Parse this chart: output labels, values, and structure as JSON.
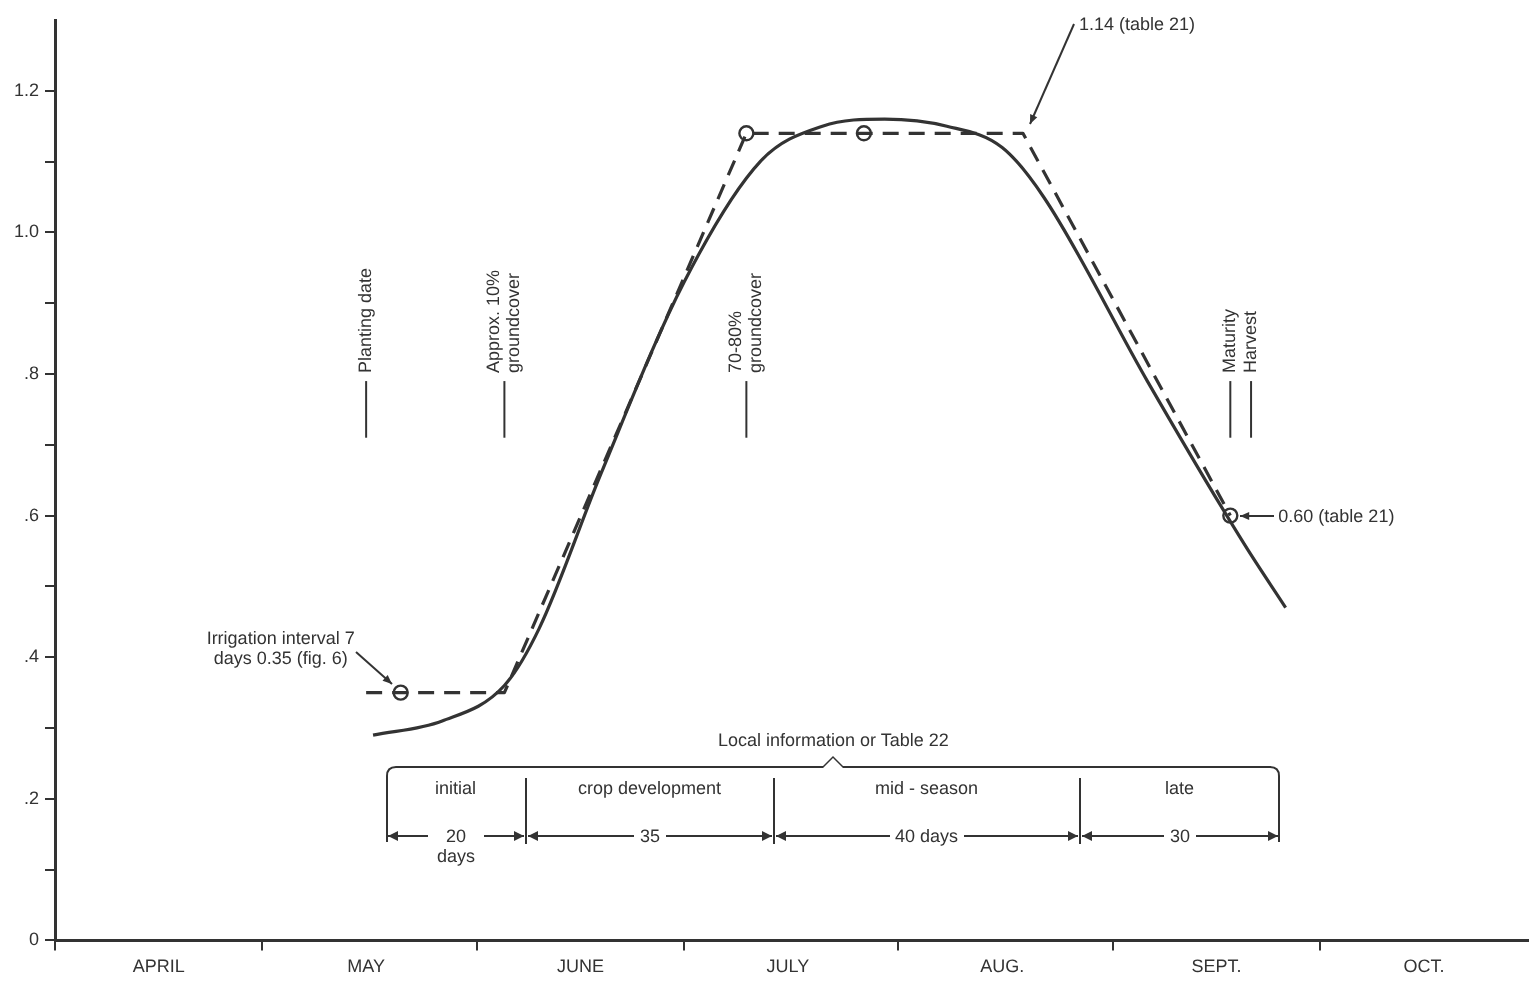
{
  "chart_data": {
    "type": "line",
    "xlim": [
      "--04-01",
      "--10-31"
    ],
    "xticks": [
      {
        "value": "--04-01",
        "label": null
      },
      {
        "value": "--04-16",
        "label": "APRIL"
      },
      {
        "value": "--05-01",
        "label": null
      },
      {
        "value": "--05-16",
        "label": "MAY"
      },
      {
        "value": "--06-01",
        "label": null
      },
      {
        "value": "--06-16",
        "label": "JUNE"
      },
      {
        "value": "--07-01",
        "label": null
      },
      {
        "value": "--07-16",
        "label": "JULY"
      },
      {
        "value": "--08-01",
        "label": null
      },
      {
        "value": "--08-16",
        "label": "AUG."
      },
      {
        "value": "--09-01",
        "label": null
      },
      {
        "value": "--09-16",
        "label": "SEPT."
      },
      {
        "value": "--10-01",
        "label": null
      },
      {
        "value": "--10-16",
        "label": "OCT."
      }
    ],
    "ylim": [
      0,
      1.3
    ],
    "yticks": [
      0,
      {
        "value": 0.1,
        "label": null
      },
      ".2",
      {
        "value": 0.3,
        "label": null
      },
      {
        "value": 0.4,
        "label": ".4"
      },
      {
        "value": 0.5,
        "label": null
      },
      {
        "value": 0.6,
        "label": ".6"
      },
      {
        "value": 0.7,
        "label": null
      },
      {
        "value": 0.8,
        "label": ".8"
      },
      {
        "value": 0.9,
        "label": null
      },
      {
        "value": 1.0,
        "label": "1.0"
      },
      {
        "value": 1.1,
        "label": null
      },
      {
        "value": 1.2,
        "label": "1.2"
      }
    ],
    "grid": false,
    "legend": false,
    "series": [
      {
        "color": "#333333",
        "marker": "none",
        "line_style": "solid",
        "x": [
          "--05-17",
          "--05-27",
          "--06-05",
          "--06-10",
          "--06-19",
          "--07-01",
          "--07-12",
          "--07-21",
          "--07-30",
          "--08-08",
          "--08-16",
          "--08-22",
          "--09-06",
          "--09-20",
          "--09-26"
        ],
        "values": [
          0.29,
          0.31,
          0.36,
          0.44,
          0.66,
          0.93,
          1.1,
          1.15,
          1.16,
          1.15,
          1.12,
          1.05,
          0.79,
          0.56,
          0.47
        ]
      },
      {
        "color": "#333333",
        "marker": "none",
        "line_style": "dashed",
        "x": [
          "--05-16",
          "--06-05",
          "--07-10",
          "--08-19",
          "--09-18"
        ],
        "values": [
          0.35,
          0.35,
          1.14,
          1.14,
          0.6
        ]
      },
      {
        "type": "scatter",
        "color": "#333333",
        "marker": "circle",
        "x": [
          "--05-21",
          "--07-10",
          "--07-27",
          "--09-18"
        ],
        "values": [
          0.35,
          1.14,
          1.14,
          0.6
        ]
      }
    ],
    "ref_lines": [
      {
        "axis": "x",
        "value": "--05-16",
        "label": "Planting date"
      },
      {
        "axis": "x",
        "value": "--06-05",
        "label": "Approx. 10% groundcover"
      },
      {
        "axis": "x",
        "value": "--07-10",
        "label": "70-80% groundcover"
      },
      {
        "axis": "x",
        "value": "--09-18",
        "label": "Maturity"
      },
      {
        "axis": "x",
        "value": "--09-21",
        "label": "Harvest"
      }
    ],
    "annotations": [
      {
        "text": "Irrigation interval 7 days 0.35 (fig. 6)",
        "x": "--05-21",
        "y": 0.35
      },
      {
        "text": "1.14 (table 21)",
        "x": "--08-19",
        "y": 1.14
      },
      {
        "text": "0.60 (table 21)",
        "x": "--09-18",
        "y": 0.6
      },
      "Local information or Table 22",
      "initial",
      "crop development",
      "mid - season",
      "late",
      "20 days",
      "35",
      "40 days",
      "30"
    ]
  }
}
